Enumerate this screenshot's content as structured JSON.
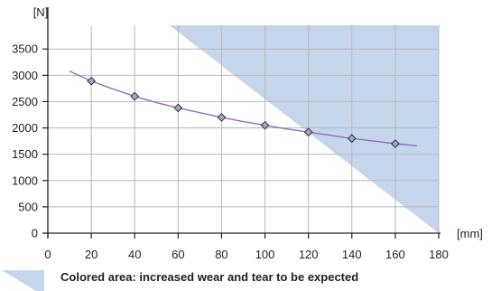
{
  "chart_data": {
    "type": "line",
    "title": "",
    "ylabel": "[N]",
    "xlabel": "[mm]",
    "x_ticks": [
      "0",
      "20",
      "40",
      "60",
      "80",
      "100",
      "120",
      "140",
      "160",
      "180"
    ],
    "y_ticks": [
      "0",
      "500",
      "1000",
      "1500",
      "2000",
      "2500",
      "3000",
      "3500"
    ],
    "xlim": [
      0,
      180
    ],
    "ylim": [
      0,
      3950
    ],
    "grid": true,
    "series": [
      {
        "x": [
          20,
          40,
          60,
          80,
          100,
          120,
          140,
          160
        ],
        "values": [
          2890,
          2600,
          2380,
          2200,
          2050,
          1920,
          1800,
          1700
        ],
        "curve_x": [
          10,
          20,
          30,
          40,
          50,
          60,
          70,
          80,
          90,
          100,
          110,
          120,
          130,
          140,
          150,
          160,
          170
        ],
        "curve_y": [
          3080,
          2890,
          2740,
          2600,
          2480,
          2380,
          2290,
          2200,
          2120,
          2050,
          1980,
          1920,
          1860,
          1800,
          1750,
          1700,
          1660
        ]
      }
    ],
    "shaded_region": {
      "description_label": "Colored area: increased wear and tear to be expected",
      "boundary": [
        [
          56,
          3950
        ],
        [
          180,
          0
        ]
      ]
    },
    "colors": {
      "curve": "#8e6fbf",
      "marker_fill": "#a8a0cf",
      "marker_stroke": "#333333",
      "region": "#c5d5ec",
      "grid": "#b8b8b8",
      "axis": "#222222"
    }
  }
}
